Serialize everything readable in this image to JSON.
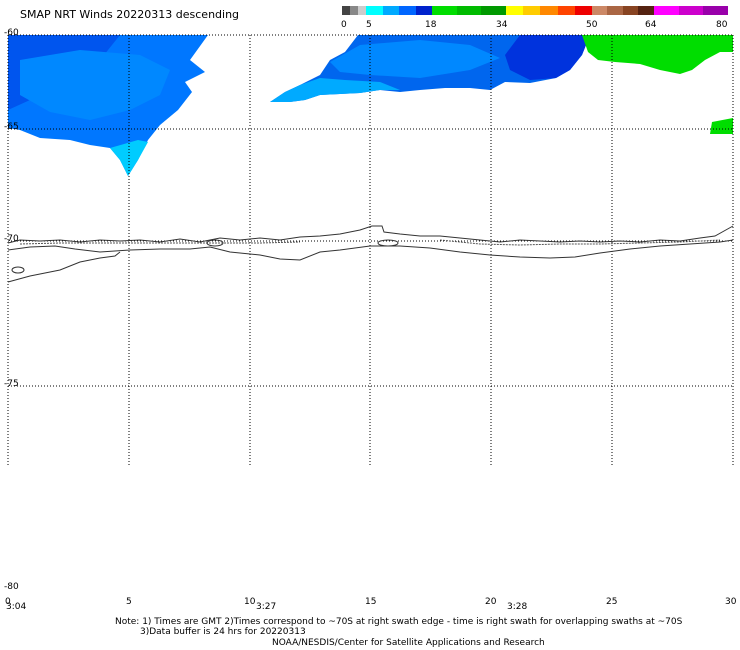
{
  "title": "SMAP NRT Winds  20220313 descending",
  "colorbar": {
    "labels": [
      "0",
      "5",
      "18",
      "34",
      "50",
      "64",
      "80"
    ],
    "segments": [
      {
        "name": "0-5",
        "colors": [
          "#444444",
          "#888888",
          "#cccccc"
        ]
      },
      {
        "name": "5-18",
        "colors": [
          "#00ffff",
          "#00aaff",
          "#0066ff",
          "#0022cc"
        ]
      },
      {
        "name": "18-34",
        "colors": [
          "#00dd00",
          "#00bb00",
          "#009900"
        ]
      },
      {
        "name": "34-50",
        "colors": [
          "#ffff00",
          "#ffcc00",
          "#ff8800",
          "#ff4400",
          "#ee0000"
        ]
      },
      {
        "name": "50-64",
        "colors": [
          "#cc8866",
          "#aa6644",
          "#884422",
          "#552211"
        ]
      },
      {
        "name": "64-80",
        "colors": [
          "#ff00ff",
          "#cc00cc",
          "#9900aa"
        ]
      }
    ]
  },
  "lat_labels": [
    "-60",
    "-65",
    "-70",
    "-75",
    "-80"
  ],
  "lon_labels": [
    "0",
    "5",
    "10",
    "15",
    "20",
    "25",
    "30"
  ],
  "time_labels": [
    "3:04",
    "3:27",
    "3:28"
  ],
  "notes": [
    "Note: 1) Times are GMT 2)Times correspond to ~70S at right swath edge - time is right swath for overlapping swaths at ~70S",
    "3)Data buffer is 24 hrs for 20220313",
    "NOAA/NESDIS/Center for Satellite Applications and Research"
  ],
  "map": {
    "projection": "lat-lon",
    "lon_range": [
      0,
      30
    ],
    "lat_range": [
      -60,
      -80
    ],
    "wind_colors": {
      "light_blue": "#00ccff",
      "mid_blue": "#0088ff",
      "dark_blue": "#0044ee",
      "green": "#00dd00"
    }
  }
}
